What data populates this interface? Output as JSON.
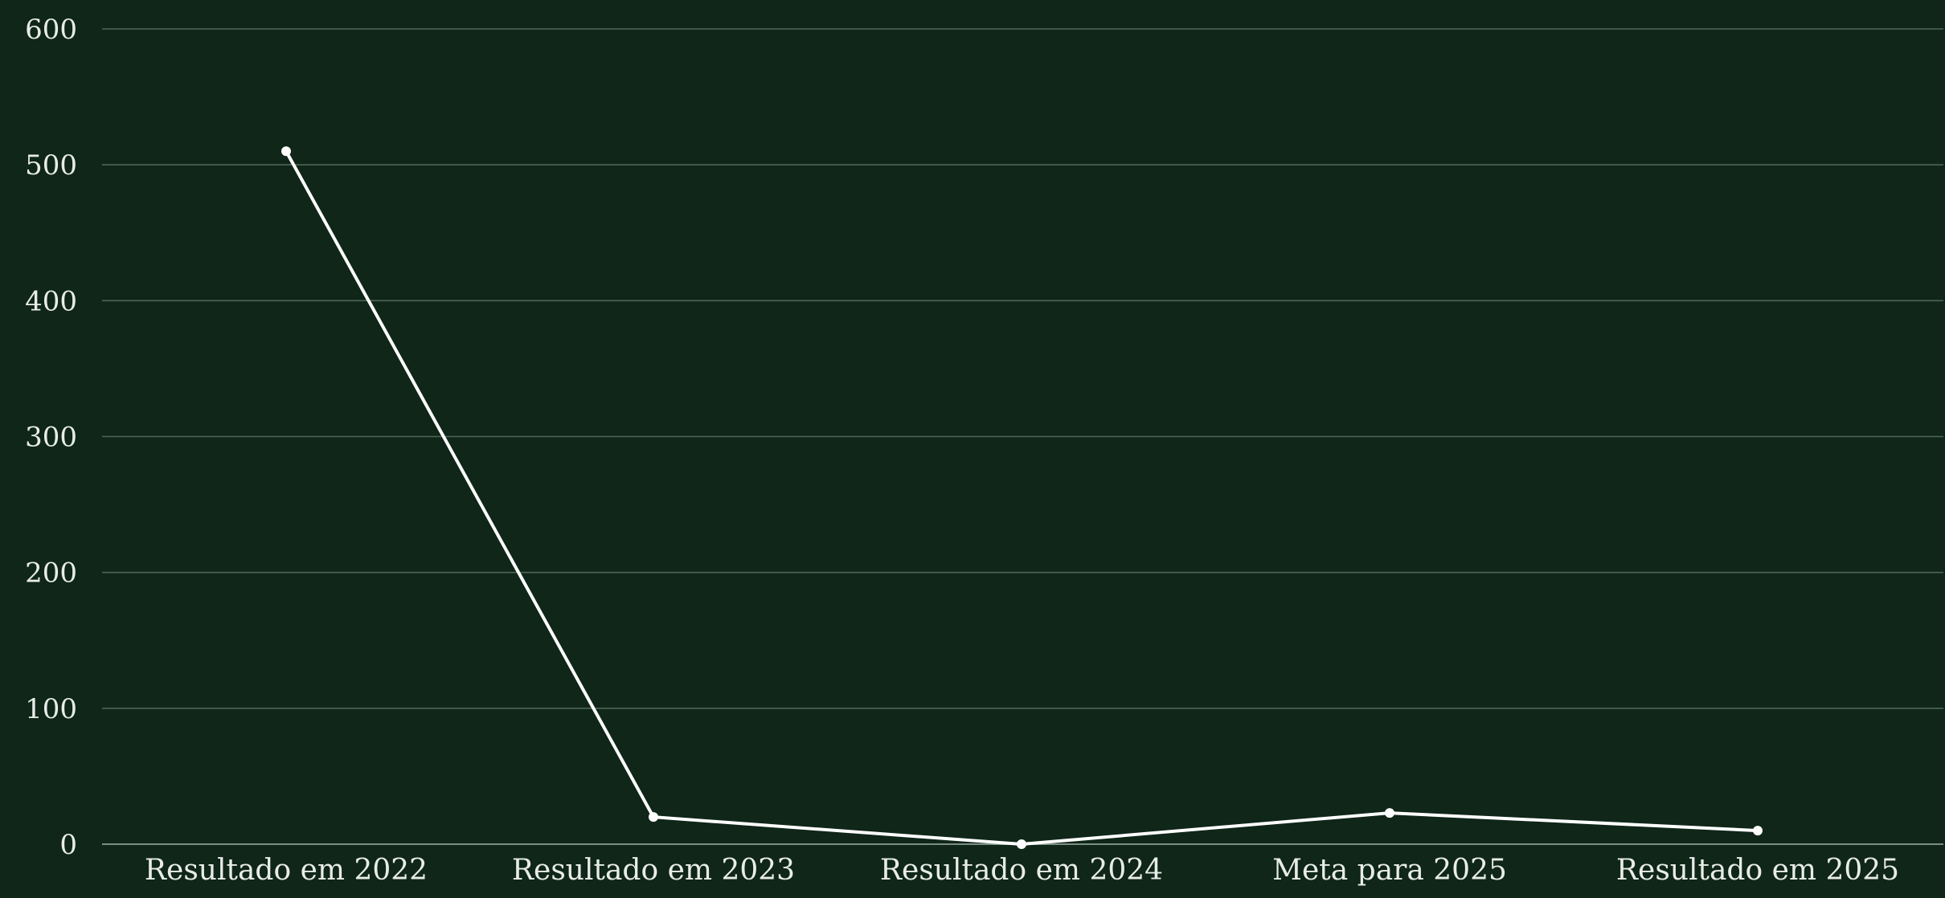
{
  "chart_data": {
    "type": "line",
    "title": "",
    "xlabel": "",
    "ylabel": "",
    "categories": [
      "Resultado em 2022",
      "Resultado em 2023",
      "Resultado em 2024",
      "Meta para 2025",
      "Resultado em 2025"
    ],
    "series": [
      {
        "values": [
          510,
          20,
          0,
          23,
          10
        ]
      }
    ],
    "ylim": [
      0,
      600
    ],
    "yticks": [
      0,
      100,
      200,
      300,
      400,
      500,
      600
    ],
    "grid": true,
    "legend": "none",
    "colors": {
      "background": "#0f2619",
      "line": "#ffffff",
      "grid": "#4e6658",
      "text": "#e8ece8"
    }
  }
}
